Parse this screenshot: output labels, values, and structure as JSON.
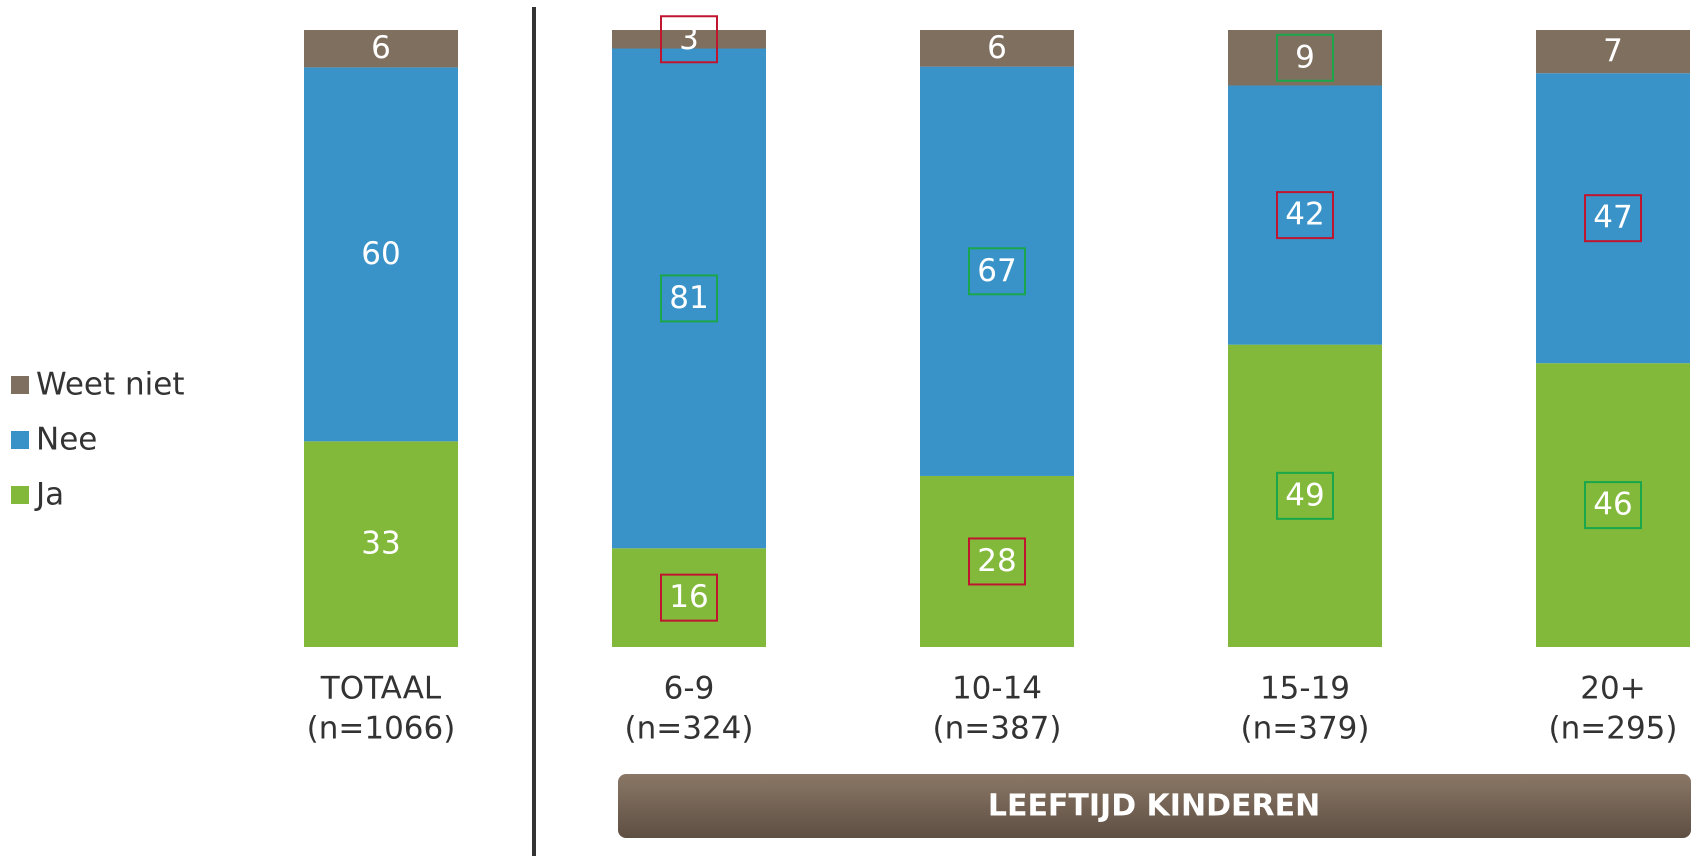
{
  "chart_data": {
    "type": "bar",
    "stacked": "percent",
    "categories": [
      "TOTAAL",
      "6-9",
      "10-14",
      "15-19",
      "20+"
    ],
    "sample_sizes": [
      "(n=1066)",
      "(n=324)",
      "(n=387)",
      "(n=379)",
      "(n=295)"
    ],
    "group_label": "LEEFTIJD KINDEREN",
    "series": [
      {
        "name": "Ja",
        "color": "#82b93a",
        "values": [
          33,
          16,
          28,
          49,
          46
        ],
        "label_boxes": [
          null,
          "#c0152f",
          "#c0152f",
          "#1aa64a",
          "#1aa64a"
        ]
      },
      {
        "name": "Nee",
        "color": "#3a93c8",
        "values": [
          60,
          81,
          67,
          42,
          47
        ],
        "label_boxes": [
          null,
          "#1aa64a",
          "#1aa64a",
          "#c0152f",
          "#c0152f"
        ]
      },
      {
        "name": "Weet niet",
        "color": "#7f6f5f",
        "values": [
          6,
          3,
          6,
          9,
          7
        ],
        "label_boxes": [
          null,
          "#c0152f",
          null,
          "#1aa64a",
          null
        ]
      }
    ],
    "legend": "left"
  }
}
